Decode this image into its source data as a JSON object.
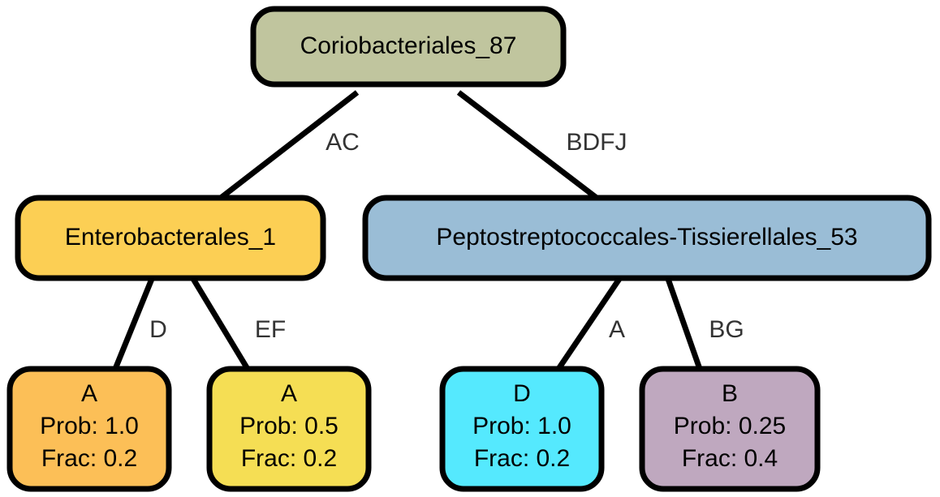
{
  "tree": {
    "root": {
      "label": "Coriobacteriales_87",
      "color": "#c0c59e"
    },
    "left_child": {
      "label": "Enterobacterales_1",
      "color": "#fccf54",
      "edge_label": "AC"
    },
    "right_child": {
      "label": "Peptostreptococcales-Tissierellales_53",
      "color": "#9abdd6",
      "edge_label": "BDFJ"
    },
    "leaves": [
      {
        "title": "A",
        "prob": "Prob: 1.0",
        "frac": "Frac: 0.2",
        "color": "#fcbf57",
        "edge_label": "D"
      },
      {
        "title": "A",
        "prob": "Prob: 0.5",
        "frac": "Frac: 0.2",
        "color": "#f5de54",
        "edge_label": "EF"
      },
      {
        "title": "D",
        "prob": "Prob: 1.0",
        "frac": "Frac: 0.2",
        "color": "#55e9fe",
        "edge_label": "A"
      },
      {
        "title": "B",
        "prob": "Prob: 0.25",
        "frac": "Frac: 0.4",
        "color": "#bfa8bf",
        "edge_label": "BG"
      }
    ]
  }
}
